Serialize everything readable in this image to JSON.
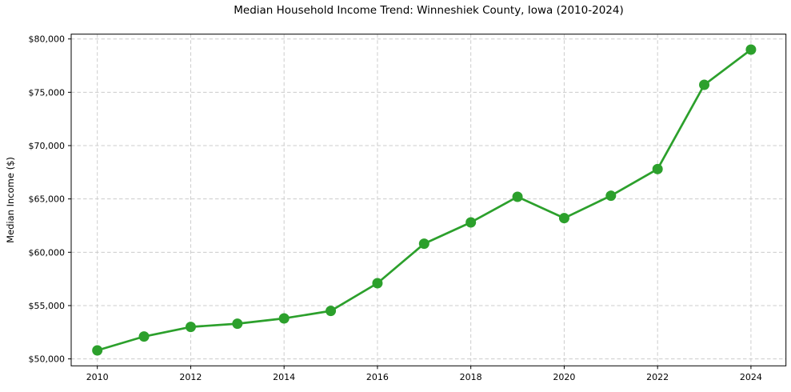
{
  "chart_data": {
    "type": "line",
    "title": "Median Household Income Trend: Winneshiek County, Iowa (2010-2024)",
    "xlabel": "",
    "ylabel": "Median Income ($)",
    "x": [
      2010,
      2011,
      2012,
      2013,
      2014,
      2015,
      2016,
      2017,
      2018,
      2019,
      2020,
      2021,
      2022,
      2023,
      2024
    ],
    "series": [
      {
        "name": "Median Household Income",
        "color": "#2ca02c",
        "values": [
          50800,
          52100,
          53000,
          53300,
          53800,
          54500,
          57100,
          60800,
          62800,
          65200,
          63200,
          65300,
          67800,
          75700,
          79000
        ]
      }
    ],
    "x_tick_values": [
      2010,
      2012,
      2014,
      2016,
      2018,
      2020,
      2022,
      2024
    ],
    "x_tick_labels": [
      "2010",
      "2012",
      "2014",
      "2016",
      "2018",
      "2020",
      "2022",
      "2024"
    ],
    "y_tick_values": [
      50000,
      55000,
      60000,
      65000,
      70000,
      75000,
      80000
    ],
    "y_tick_labels": [
      "$50,000",
      "$55,000",
      "$60,000",
      "$65,000",
      "$70,000",
      "$75,000",
      "$80,000"
    ],
    "xlim": [
      2009.44,
      2024.75
    ],
    "ylim": [
      49350,
      80450
    ],
    "grid": true,
    "grid_style": "dashed",
    "legend_position": "none",
    "marker": "circle"
  },
  "colors": {
    "line": "#2ca02c",
    "grid": "#cccccc",
    "axis": "#000000",
    "text": "#000000",
    "background": "#ffffff"
  }
}
